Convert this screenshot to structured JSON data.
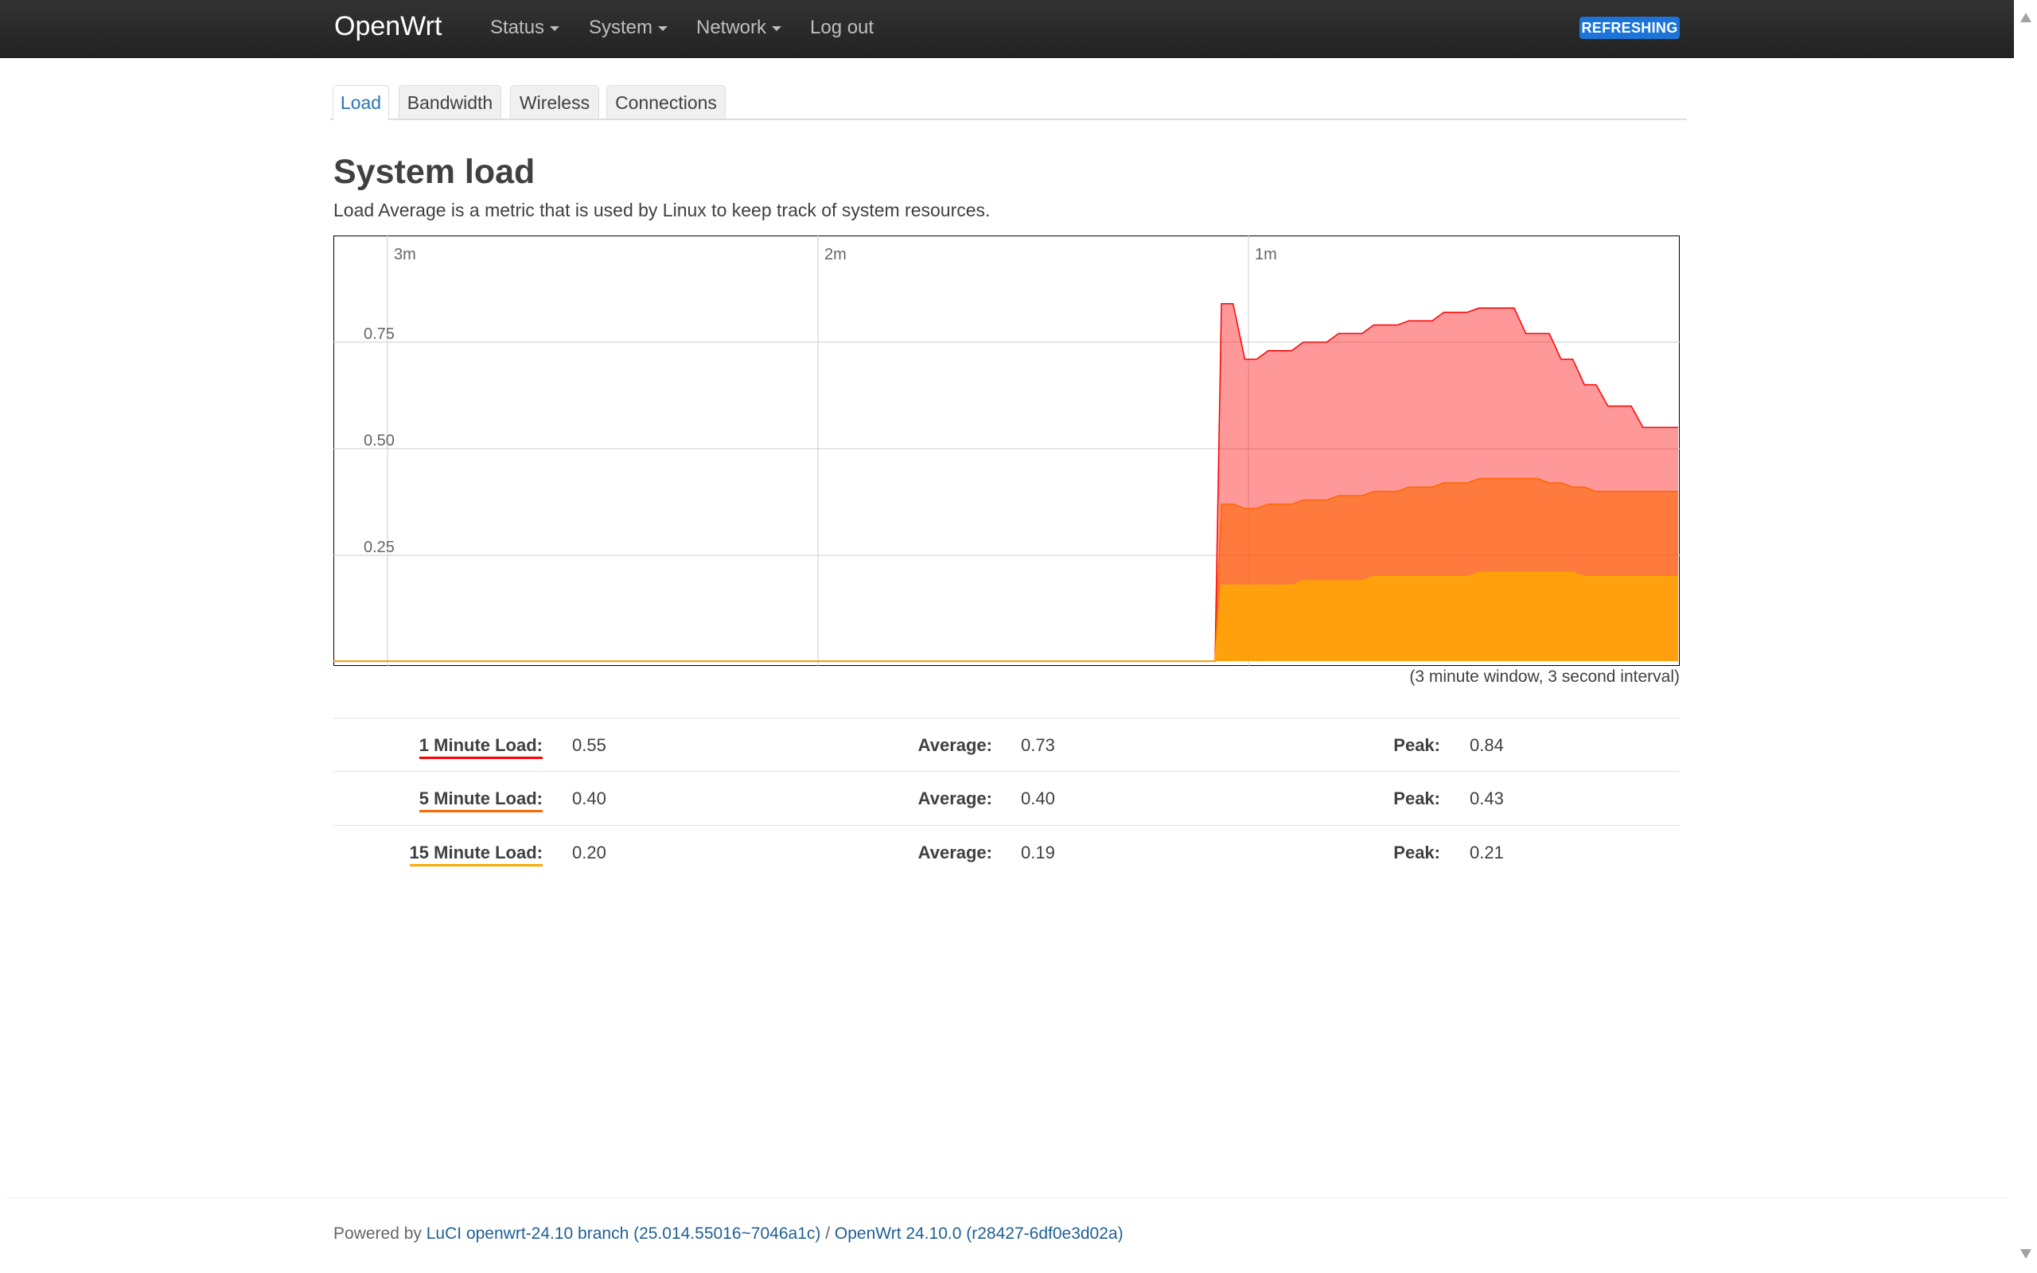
{
  "navbar": {
    "brand": "OpenWrt",
    "items": [
      {
        "label": "Status",
        "dropdown": true
      },
      {
        "label": "System",
        "dropdown": true
      },
      {
        "label": "Network",
        "dropdown": true
      },
      {
        "label": "Log out",
        "dropdown": false
      }
    ],
    "badge": "REFRESHING"
  },
  "tabs": [
    {
      "label": "Load",
      "active": true
    },
    {
      "label": "Bandwidth",
      "active": false
    },
    {
      "label": "Wireless",
      "active": false
    },
    {
      "label": "Connections",
      "active": false
    }
  ],
  "page": {
    "title": "System load",
    "description": "Load Average is a metric that is used by Linux to keep track of system resources."
  },
  "chart_data": {
    "type": "area",
    "x_tick_labels": [
      "3m",
      "2m",
      "1m"
    ],
    "y_tick_labels": [
      "0.25",
      "0.50",
      "0.75"
    ],
    "ylim": [
      0,
      1
    ],
    "grid": true,
    "caption": "(3 minute window, 3 second interval)",
    "colors": {
      "1min": "#ff0000",
      "5min": "#ff6600",
      "15min": "#ffaa00"
    },
    "series": [
      {
        "key": "1min",
        "values": [
          0.84,
          0.84,
          0.71,
          0.71,
          0.73,
          0.73,
          0.73,
          0.75,
          0.75,
          0.75,
          0.77,
          0.77,
          0.77,
          0.79,
          0.79,
          0.79,
          0.8,
          0.8,
          0.8,
          0.82,
          0.82,
          0.82,
          0.83,
          0.83,
          0.83,
          0.83,
          0.77,
          0.77,
          0.77,
          0.71,
          0.71,
          0.65,
          0.65,
          0.6,
          0.6,
          0.6,
          0.55,
          0.55,
          0.55,
          0.55
        ]
      },
      {
        "key": "5min",
        "values": [
          0.37,
          0.37,
          0.36,
          0.36,
          0.37,
          0.37,
          0.37,
          0.38,
          0.38,
          0.38,
          0.39,
          0.39,
          0.39,
          0.4,
          0.4,
          0.4,
          0.41,
          0.41,
          0.41,
          0.42,
          0.42,
          0.42,
          0.43,
          0.43,
          0.43,
          0.43,
          0.43,
          0.43,
          0.42,
          0.42,
          0.41,
          0.41,
          0.4,
          0.4,
          0.4,
          0.4,
          0.4,
          0.4,
          0.4,
          0.4
        ]
      },
      {
        "key": "15min",
        "values": [
          0.18,
          0.18,
          0.18,
          0.18,
          0.18,
          0.18,
          0.18,
          0.19,
          0.19,
          0.19,
          0.19,
          0.19,
          0.19,
          0.2,
          0.2,
          0.2,
          0.2,
          0.2,
          0.2,
          0.2,
          0.2,
          0.2,
          0.21,
          0.21,
          0.21,
          0.21,
          0.21,
          0.21,
          0.21,
          0.21,
          0.21,
          0.2,
          0.2,
          0.2,
          0.2,
          0.2,
          0.2,
          0.2,
          0.2,
          0.2
        ]
      }
    ]
  },
  "stats": [
    {
      "label": "1 Minute Load:",
      "value": "0.55",
      "avg_label": "Average:",
      "avg": "0.73",
      "peak_label": "Peak:",
      "peak": "0.84",
      "color": "#ff0000"
    },
    {
      "label": "5 Minute Load:",
      "value": "0.40",
      "avg_label": "Average:",
      "avg": "0.40",
      "peak_label": "Peak:",
      "peak": "0.43",
      "color": "#ff6600"
    },
    {
      "label": "15 Minute Load:",
      "value": "0.20",
      "avg_label": "Average:",
      "avg": "0.19",
      "peak_label": "Peak:",
      "peak": "0.21",
      "color": "#ffaa00"
    }
  ],
  "footer": {
    "powered_by": "Powered by",
    "luci_link": "LuCI openwrt-24.10 branch (25.014.55016~7046a1c)",
    "separator": " / ",
    "openwrt_link": "OpenWrt 24.10.0 (r28427-6df0e3d02a)"
  }
}
